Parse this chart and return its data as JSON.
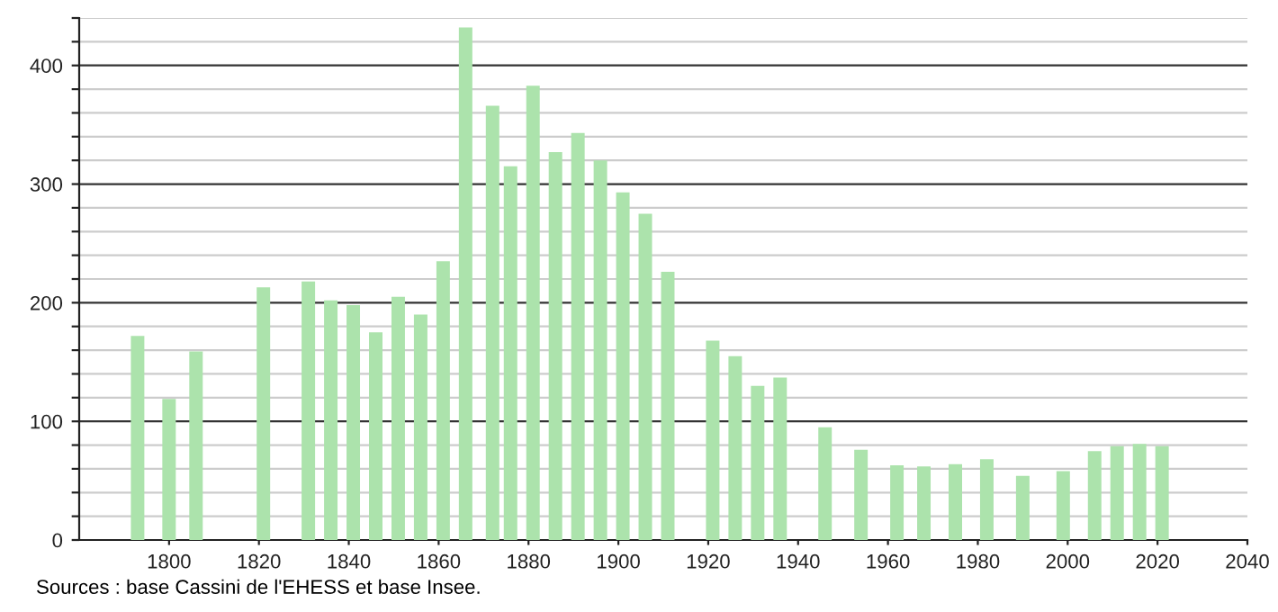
{
  "chart_data": {
    "type": "bar",
    "x": [
      1793,
      1800,
      1806,
      1821,
      1831,
      1836,
      1841,
      1846,
      1851,
      1856,
      1861,
      1866,
      1872,
      1876,
      1881,
      1886,
      1891,
      1896,
      1901,
      1906,
      1911,
      1921,
      1926,
      1931,
      1936,
      1946,
      1954,
      1962,
      1968,
      1975,
      1982,
      1990,
      1999,
      2006,
      2011,
      2016,
      2021
    ],
    "values": [
      172,
      119,
      159,
      213,
      218,
      202,
      198,
      175,
      205,
      190,
      235,
      432,
      366,
      315,
      383,
      327,
      343,
      320,
      293,
      275,
      226,
      168,
      155,
      130,
      137,
      95,
      76,
      63,
      62,
      64,
      68,
      54,
      58,
      75,
      79,
      81,
      79
    ],
    "color": "#ace3ac",
    "xlim": [
      1780,
      2040
    ],
    "xticks": [
      1800,
      1820,
      1840,
      1860,
      1880,
      1900,
      1920,
      1940,
      1960,
      1980,
      2000,
      2020,
      2040
    ],
    "ylim": [
      0,
      440
    ],
    "yticks": [
      0,
      {
        "value": 20,
        "label": null
      },
      {
        "value": 40,
        "label": null
      },
      {
        "value": 60,
        "label": null
      },
      {
        "value": 80,
        "label": null
      },
      100,
      {
        "value": 120,
        "label": null
      },
      {
        "value": 140,
        "label": null
      },
      {
        "value": 160,
        "label": null
      },
      {
        "value": 180,
        "label": null
      },
      200,
      {
        "value": 220,
        "label": null
      },
      {
        "value": 240,
        "label": null
      },
      {
        "value": 260,
        "label": null
      },
      {
        "value": 280,
        "label": null
      },
      300,
      {
        "value": 320,
        "label": null
      },
      {
        "value": 340,
        "label": null
      },
      {
        "value": 360,
        "label": null
      },
      {
        "value": 380,
        "label": null
      },
      400,
      {
        "value": 420,
        "label": null
      },
      {
        "value": 440,
        "label": null
      }
    ],
    "grid": "y",
    "annotations": [
      "Sources : base Cassini de l'EHESS et base Insee."
    ]
  }
}
